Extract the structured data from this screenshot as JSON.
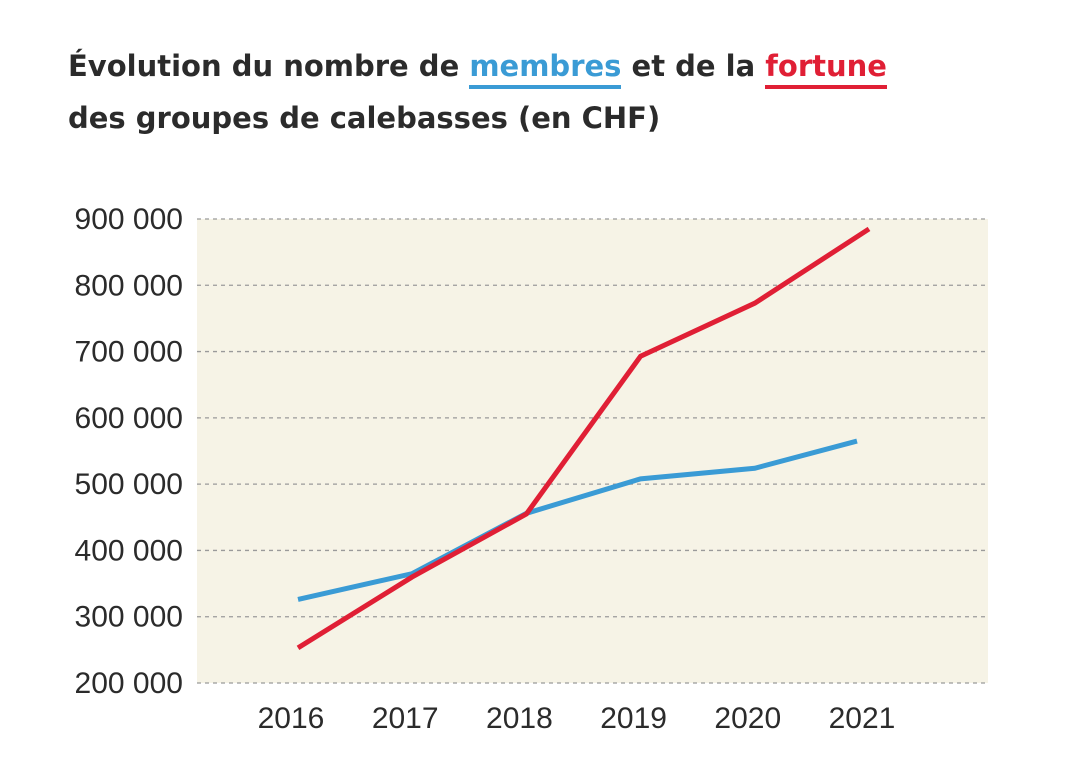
{
  "title": {
    "line1_part1": "Évolution du nombre de ",
    "line1_members": "membres",
    "line1_part2": " et de la ",
    "line1_fortune": "fortune",
    "line2": "des groupes de calebasses (en CHF)"
  },
  "colors": {
    "members": "#3a9bd5",
    "fortune": "#e01f35",
    "plot_background": "#f6f3e6",
    "grid": "#9a9a9a"
  },
  "chart_data": {
    "type": "line",
    "title": "Évolution du nombre de membres et de la fortune des groupes de calebasses (en CHF)",
    "xlabel": "",
    "ylabel": "",
    "x": [
      "2016",
      "2017",
      "2018",
      "2019",
      "2020",
      "2021"
    ],
    "series": [
      {
        "name": "membres",
        "color": "#3a9bd5",
        "values": [
          326000,
          365000,
          456000,
          508000,
          524000,
          565000
        ]
      },
      {
        "name": "fortune",
        "color": "#e01f35",
        "values": [
          253000,
          360000,
          455000,
          693000,
          773000,
          885000
        ]
      }
    ],
    "ylim": [
      200000,
      900000
    ],
    "yticks": [
      200000,
      300000,
      400000,
      500000,
      600000,
      700000,
      800000,
      900000
    ],
    "ytick_labels": [
      "200 000",
      "300 000",
      "400 000",
      "500 000",
      "600 000",
      "700 000",
      "800 000",
      "900 000"
    ],
    "grid": true,
    "grid_style": "dashed",
    "legend": "in-title"
  }
}
